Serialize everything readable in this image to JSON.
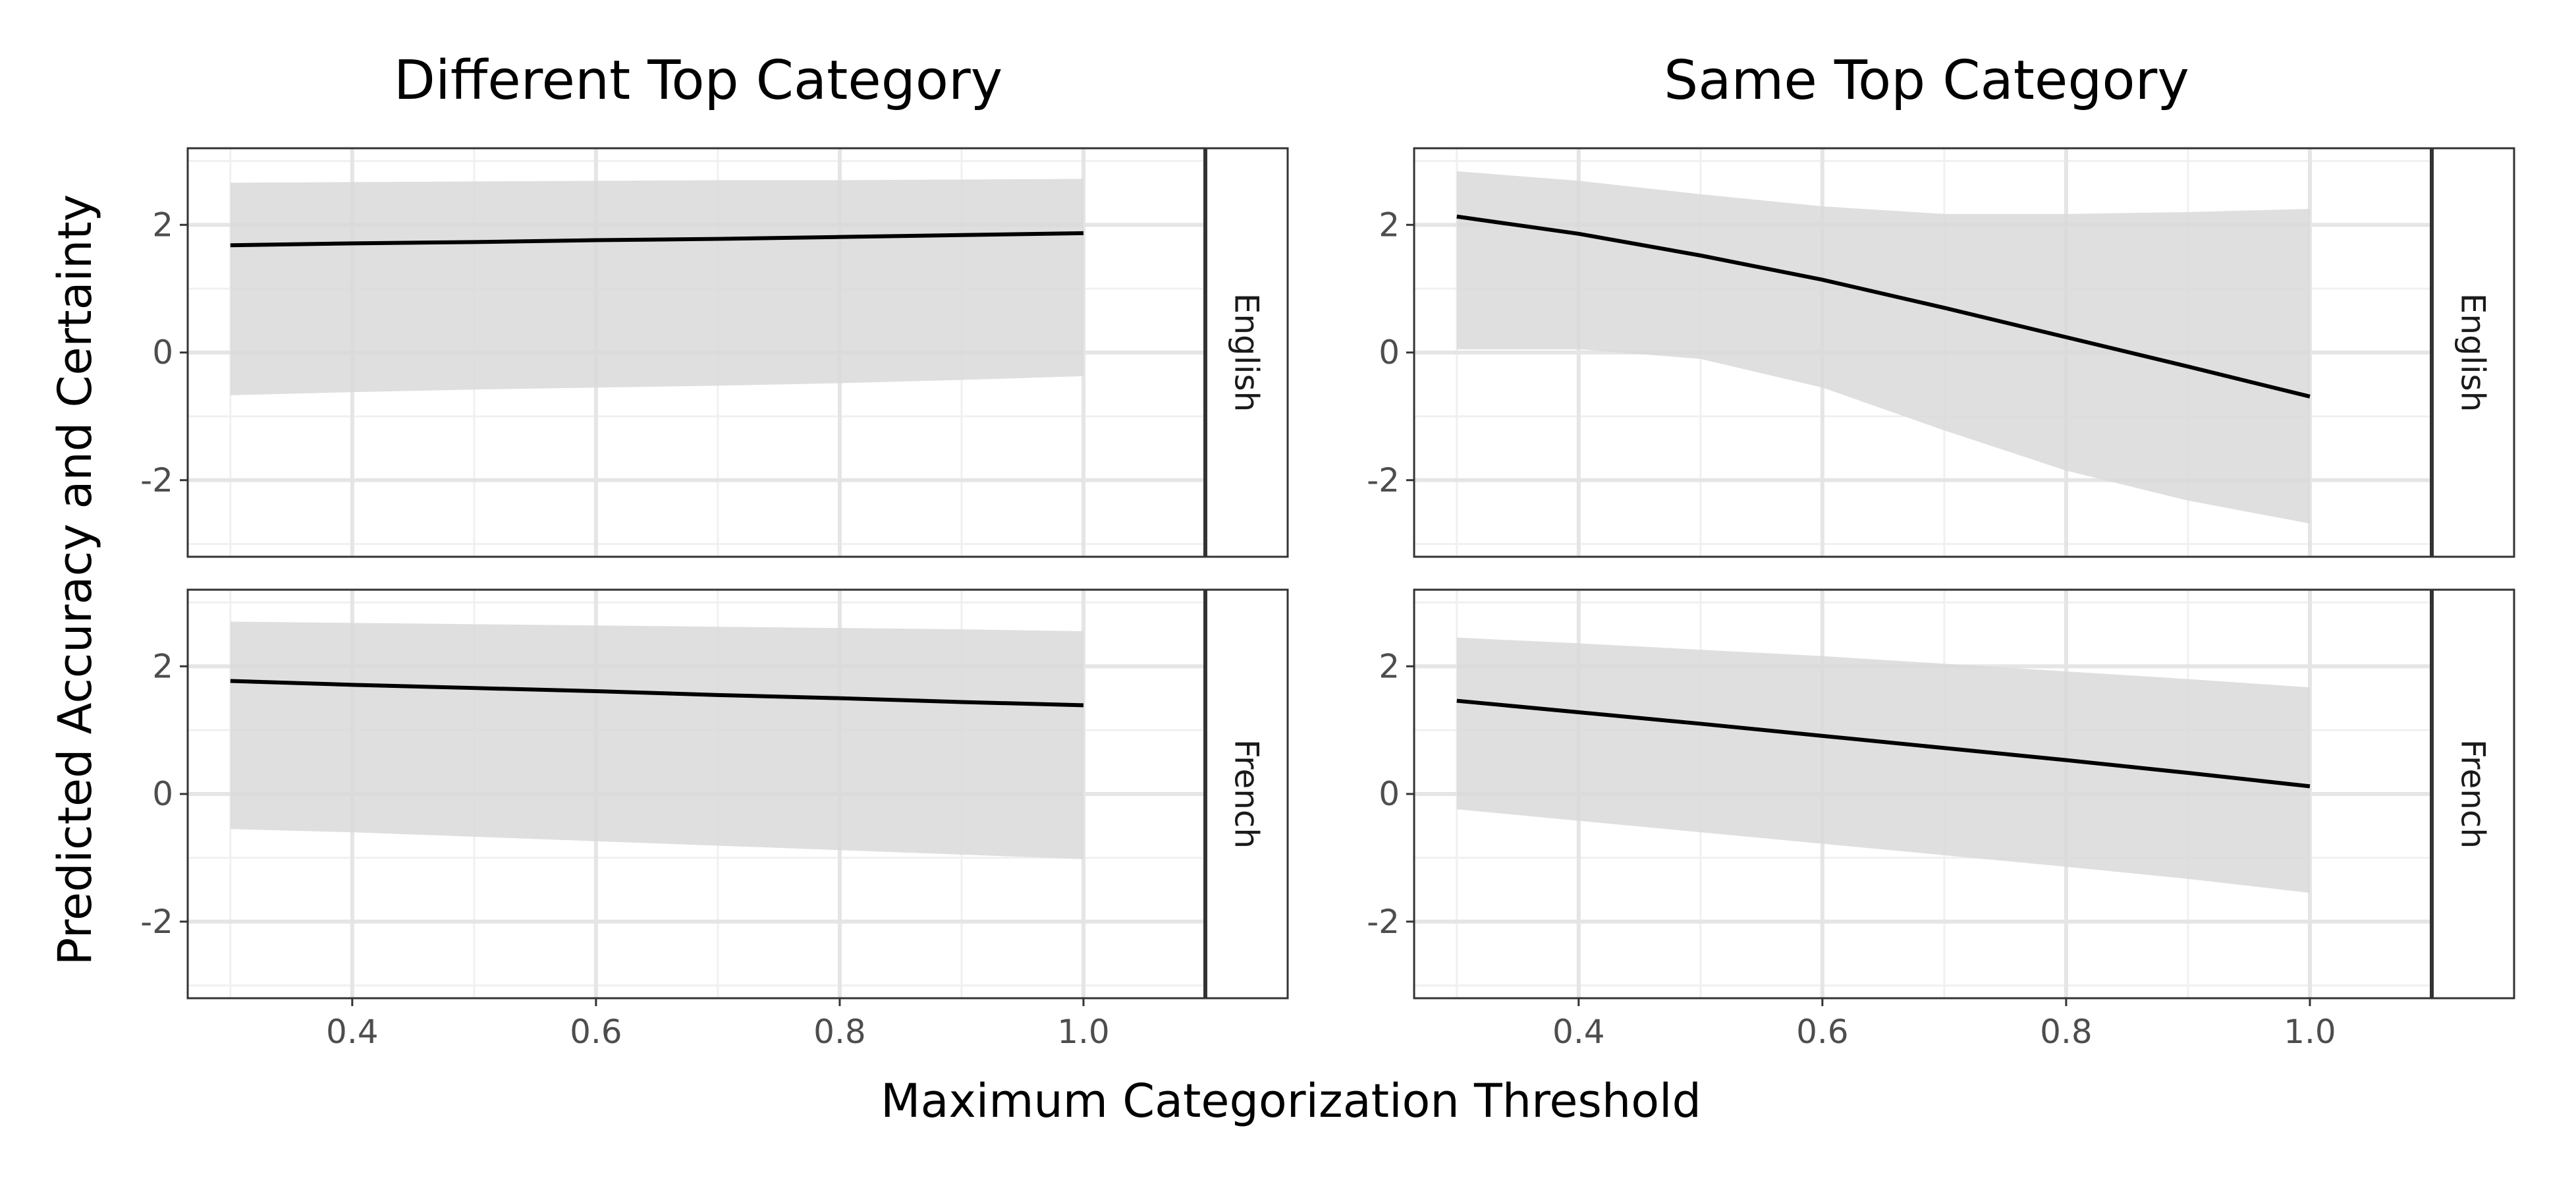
{
  "chart_data": {
    "type": "line",
    "xlabel": "Maximum Categorization Threshold",
    "ylabel": "Predicted Accuracy and Certainty",
    "xlim": [
      0.265,
      1.1
    ],
    "ylim": [
      -3.2,
      3.2
    ],
    "x_ticks": [
      0.4,
      0.6,
      0.8,
      1.0
    ],
    "x_tick_labels": [
      "0.4",
      "0.6",
      "0.8",
      "1.0"
    ],
    "y_ticks": [
      -2,
      0,
      2
    ],
    "y_tick_labels": [
      "-2",
      "0",
      "2"
    ],
    "grid": true,
    "band_color": "#d9d9d9",
    "line_color": "#000000",
    "column_titles": [
      "Different Top Category",
      "Same Top Category"
    ],
    "row_labels": [
      "English",
      "French"
    ],
    "panels": [
      {
        "column": "Different Top Category",
        "row": "English",
        "x": [
          0.3,
          0.4,
          0.5,
          0.6,
          0.7,
          0.8,
          0.9,
          1.0
        ],
        "y": [
          1.68,
          1.71,
          1.73,
          1.76,
          1.78,
          1.81,
          1.84,
          1.87
        ],
        "lower": [
          -0.67,
          -0.62,
          -0.58,
          -0.55,
          -0.52,
          -0.48,
          -0.43,
          -0.37
        ],
        "upper": [
          2.66,
          2.67,
          2.68,
          2.69,
          2.7,
          2.7,
          2.71,
          2.72
        ]
      },
      {
        "column": "Same Top Category",
        "row": "English",
        "x": [
          0.3,
          0.4,
          0.5,
          0.6,
          0.7,
          0.8,
          0.9,
          1.0
        ],
        "y": [
          2.13,
          1.86,
          1.52,
          1.14,
          0.7,
          0.24,
          -0.22,
          -0.69
        ],
        "lower": [
          0.05,
          0.05,
          -0.1,
          -0.55,
          -1.22,
          -1.85,
          -2.32,
          -2.68
        ],
        "upper": [
          2.84,
          2.69,
          2.48,
          2.29,
          2.17,
          2.17,
          2.2,
          2.25
        ]
      },
      {
        "column": "Different Top Category",
        "row": "French",
        "x": [
          0.3,
          0.4,
          0.5,
          0.6,
          0.7,
          0.8,
          0.9,
          1.0
        ],
        "y": [
          1.77,
          1.71,
          1.66,
          1.61,
          1.55,
          1.5,
          1.44,
          1.39
        ],
        "lower": [
          -0.55,
          -0.6,
          -0.67,
          -0.74,
          -0.81,
          -0.88,
          -0.95,
          -1.02
        ],
        "upper": [
          2.7,
          2.68,
          2.66,
          2.64,
          2.62,
          2.6,
          2.58,
          2.55
        ]
      },
      {
        "column": "Same Top Category",
        "row": "French",
        "x": [
          0.3,
          0.4,
          0.5,
          0.6,
          0.7,
          0.8,
          0.9,
          1.0
        ],
        "y": [
          1.46,
          1.28,
          1.1,
          0.91,
          0.72,
          0.53,
          0.33,
          0.12
        ],
        "lower": [
          -0.24,
          -0.42,
          -0.6,
          -0.78,
          -0.96,
          -1.14,
          -1.33,
          -1.55
        ],
        "upper": [
          2.45,
          2.36,
          2.26,
          2.16,
          2.04,
          1.92,
          1.8,
          1.67
        ]
      }
    ]
  }
}
